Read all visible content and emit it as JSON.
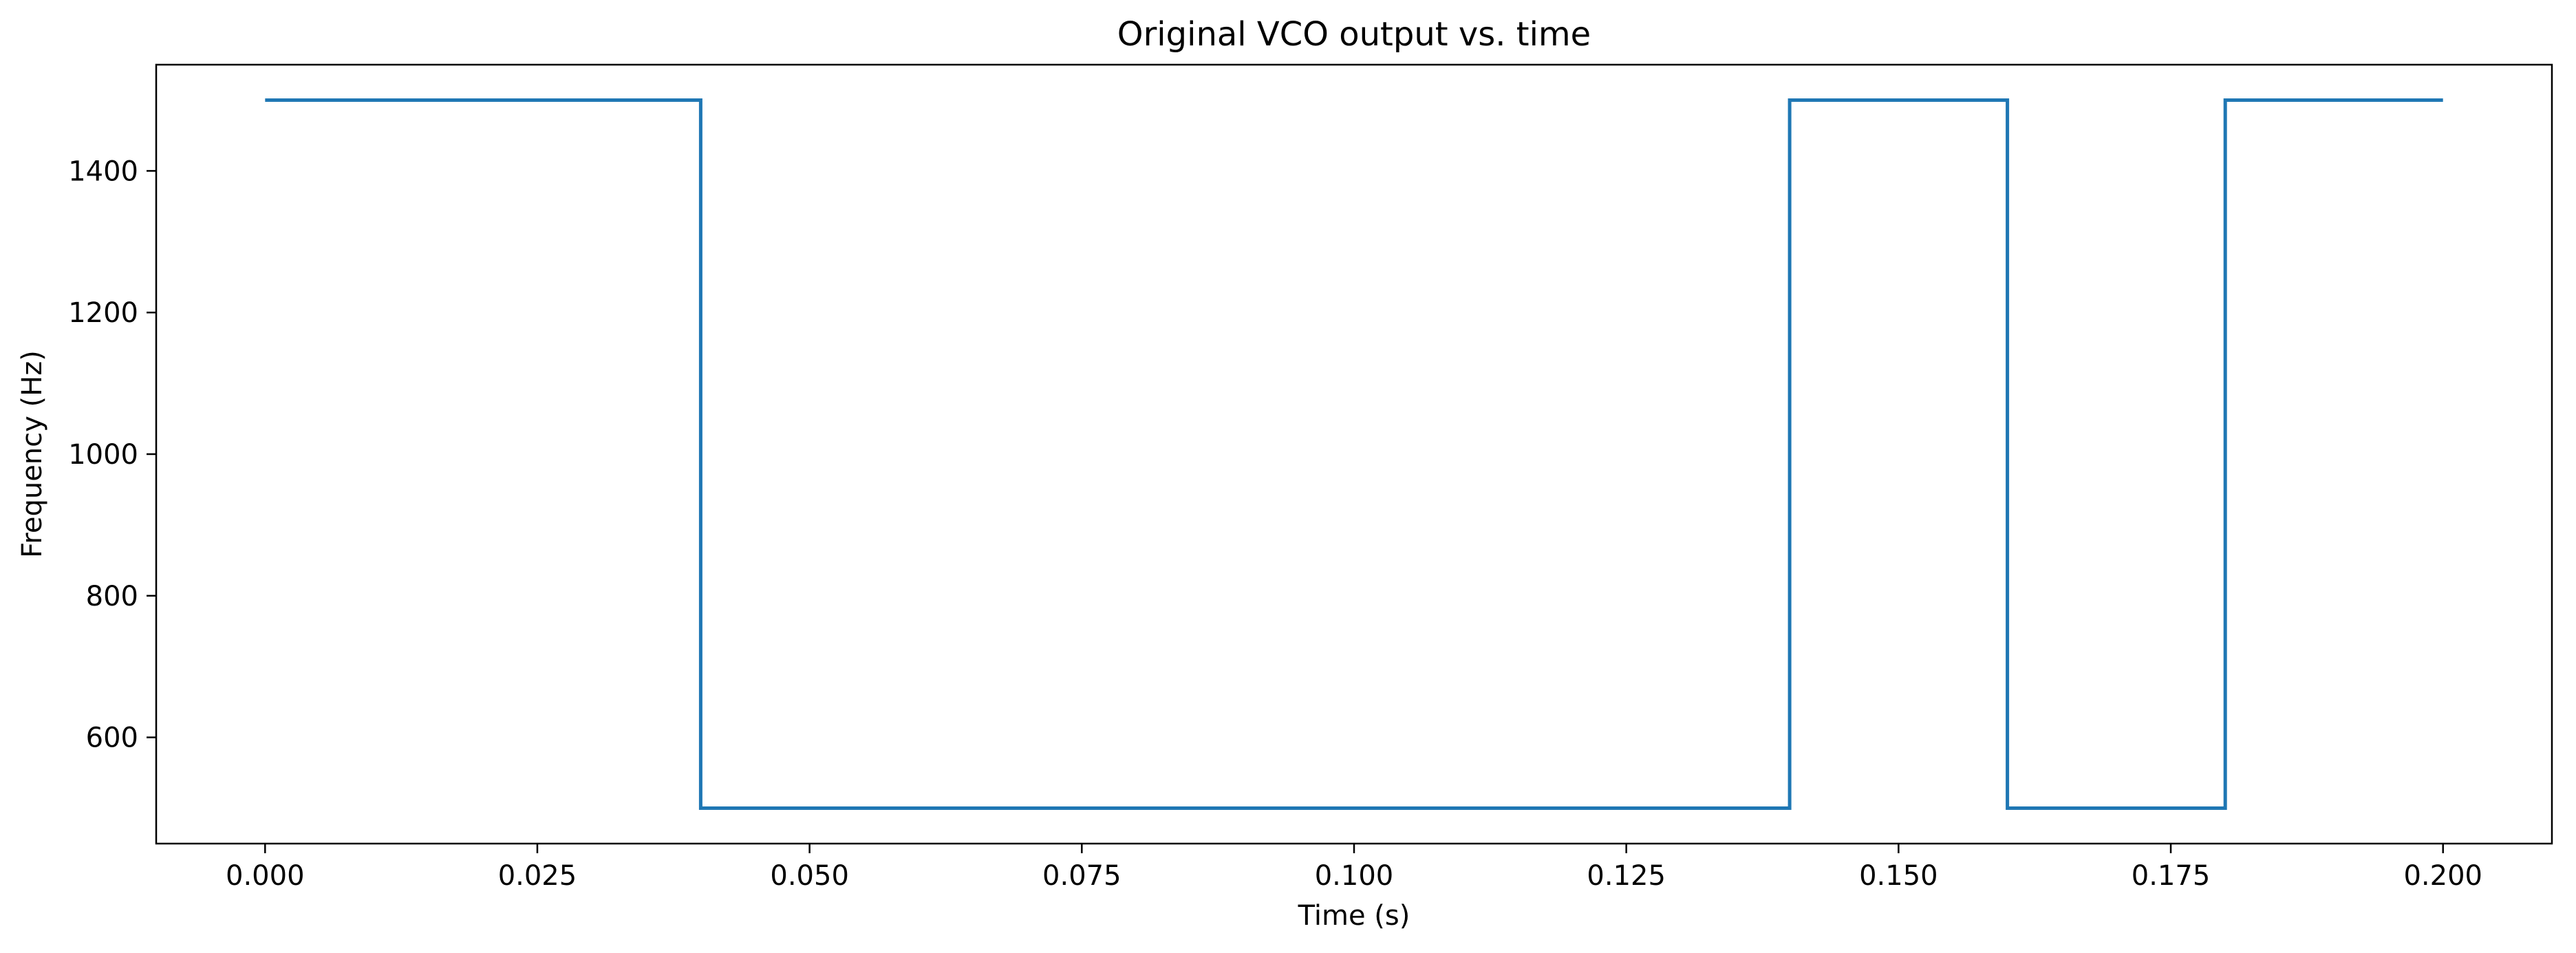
{
  "chart_data": {
    "type": "line",
    "title": "Original VCO output vs. time",
    "xlabel": "Time (s)",
    "ylabel": "Frequency (Hz)",
    "xlim": [
      -0.01,
      0.21
    ],
    "ylim": [
      450,
      1550
    ],
    "xticks": [
      0.0,
      0.025,
      0.05,
      0.075,
      0.1,
      0.125,
      0.15,
      0.175,
      0.2
    ],
    "xtick_labels": [
      "0.000",
      "0.025",
      "0.050",
      "0.075",
      "0.100",
      "0.125",
      "0.150",
      "0.175",
      "0.200"
    ],
    "yticks": [
      600,
      800,
      1000,
      1200,
      1400
    ],
    "ytick_labels": [
      "600",
      "800",
      "1000",
      "1200",
      "1400"
    ],
    "grid": false,
    "series": [
      {
        "color": "#1f77b4",
        "x": [
          0.0,
          0.04,
          0.04,
          0.14,
          0.14,
          0.16,
          0.16,
          0.18,
          0.18,
          0.2
        ],
        "y": [
          1500,
          1500,
          500,
          500,
          1500,
          1500,
          500,
          500,
          1500,
          1500
        ]
      }
    ]
  }
}
